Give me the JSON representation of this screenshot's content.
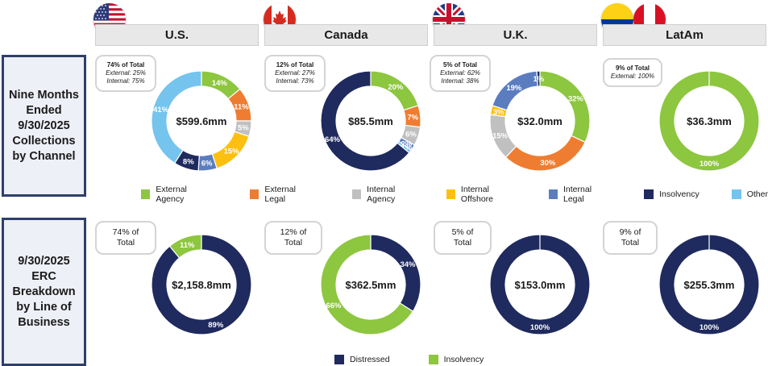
{
  "regions": [
    "U.S.",
    "Canada",
    "U.K.",
    "LatAm"
  ],
  "row_labels": {
    "collections": "Nine Months Ended 9/30/2025 Collections by Channel",
    "erc": "9/30/2025 ERC Breakdown by Line of Business"
  },
  "colors": {
    "External Agency": "#8dc63f",
    "External Legal": "#ee7d31",
    "Internal Agency": "#c0c0c0",
    "Internal Offshore": "#fdc010",
    "Internal Legal": "#5b7dc0",
    "Insolvency": "#1f2a5e",
    "Other": "#75c4ee",
    "Distressed": "#1f2a5e",
    "Insolvency LOB": "#8dc63f",
    "header_bar": "#e8e8e8",
    "row_border": "#2e3f6b"
  },
  "legend_top": [
    "External Agency",
    "External Legal",
    "Internal Agency",
    "Internal Offshore",
    "Internal Legal",
    "Insolvency",
    "Other"
  ],
  "legend_bottom": [
    {
      "label": "Distressed",
      "color_key": "Distressed"
    },
    {
      "label": "Insolvency",
      "color_key": "Insolvency LOB"
    }
  ],
  "flags": [
    "us-flag-icon",
    "canada-flag-icon",
    "uk-flag-icon",
    "colombia-flag-icon",
    "peru-flag-icon"
  ],
  "callouts_top": [
    {
      "title": "74% of Total",
      "lines": [
        "External: 25%",
        "Internal: 75%"
      ]
    },
    {
      "title": "12% of Total",
      "lines": [
        "External: 27%",
        "Internal: 73%"
      ]
    },
    {
      "title": "5% of Total",
      "lines": [
        "External: 62%",
        "Internal: 38%"
      ]
    },
    {
      "title": "9% of Total",
      "lines": [
        "External: 100%"
      ]
    }
  ],
  "callouts_bottom": [
    {
      "lines": [
        "74% of",
        "Total"
      ]
    },
    {
      "lines": [
        "12% of",
        "Total"
      ]
    },
    {
      "lines": [
        "5% of",
        "Total"
      ]
    },
    {
      "lines": [
        "9% of",
        "Total"
      ]
    }
  ],
  "chart_data": [
    {
      "type": "pie",
      "region": "U.S.",
      "row": "collections",
      "total": "$599.6mm",
      "slices": [
        {
          "label": "External Agency",
          "value": 14,
          "text": "14%"
        },
        {
          "label": "External Legal",
          "value": 11,
          "text": "11%"
        },
        {
          "label": "Internal Agency",
          "value": 5,
          "text": "5%"
        },
        {
          "label": "Internal Offshore",
          "value": 15,
          "text": "15%"
        },
        {
          "label": "Internal Legal",
          "value": 6,
          "text": "6%"
        },
        {
          "label": "Insolvency",
          "value": 8,
          "text": "8%"
        },
        {
          "label": "Other",
          "value": 41,
          "text": "41%"
        }
      ]
    },
    {
      "type": "pie",
      "region": "Canada",
      "row": "collections",
      "total": "$85.5mm",
      "slices": [
        {
          "label": "External Agency",
          "value": 20,
          "text": "20%"
        },
        {
          "label": "External Legal",
          "value": 7,
          "text": "7%"
        },
        {
          "label": "Internal Agency",
          "value": 6,
          "text": "6%"
        },
        {
          "label": "Internal Legal",
          "value": 2,
          "text": "2%"
        },
        {
          "label": "Other",
          "value": 1,
          "text": "<1%"
        },
        {
          "label": "Insolvency",
          "value": 64,
          "text": "64%"
        }
      ]
    },
    {
      "type": "pie",
      "region": "U.K.",
      "row": "collections",
      "total": "$32.0mm",
      "slices": [
        {
          "label": "External Agency",
          "value": 32,
          "text": "32%"
        },
        {
          "label": "External Legal",
          "value": 30,
          "text": "30%"
        },
        {
          "label": "Internal Agency",
          "value": 15,
          "text": "15%"
        },
        {
          "label": "Internal Offshore",
          "value": 3,
          "text": "3%"
        },
        {
          "label": "Internal Legal",
          "value": 19,
          "text": "19%"
        },
        {
          "label": "Insolvency",
          "value": 1,
          "text": "1%"
        }
      ]
    },
    {
      "type": "pie",
      "region": "LatAm",
      "row": "collections",
      "total": "$36.3mm",
      "slices": [
        {
          "label": "External Agency",
          "value": 100,
          "text": "100%"
        }
      ]
    },
    {
      "type": "pie",
      "region": "U.S.",
      "row": "erc",
      "total": "$2,158.8mm",
      "slices": [
        {
          "label": "Distressed",
          "value": 89,
          "text": "89%"
        },
        {
          "label": "Insolvency",
          "value": 11,
          "text": "11%"
        }
      ]
    },
    {
      "type": "pie",
      "region": "Canada",
      "row": "erc",
      "total": "$362.5mm",
      "slices": [
        {
          "label": "Distressed",
          "value": 34,
          "text": "34%"
        },
        {
          "label": "Insolvency",
          "value": 66,
          "text": "66%"
        }
      ]
    },
    {
      "type": "pie",
      "region": "U.K.",
      "row": "erc",
      "total": "$153.0mm",
      "slices": [
        {
          "label": "Distressed",
          "value": 100,
          "text": "100%"
        }
      ]
    },
    {
      "type": "pie",
      "region": "LatAm",
      "row": "erc",
      "total": "$255.3mm",
      "slices": [
        {
          "label": "Distressed",
          "value": 100,
          "text": "100%"
        }
      ]
    }
  ]
}
